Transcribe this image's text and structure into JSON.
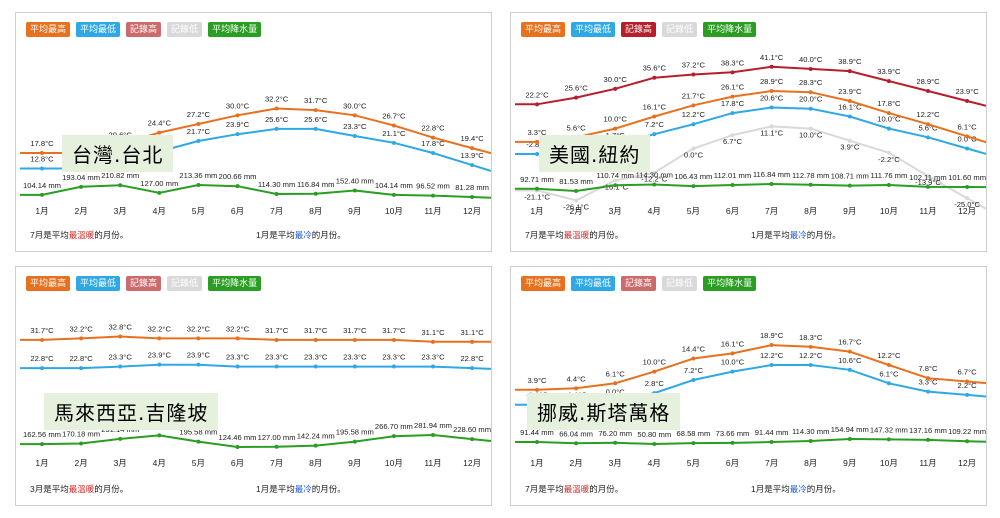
{
  "legend": {
    "high": "平均最高",
    "low": "平均最低",
    "rec_high": "記錄高",
    "rec_low": "記錄低",
    "precip": "平均降水量"
  },
  "months": [
    "1月",
    "2月",
    "3月",
    "4月",
    "5月",
    "6月",
    "7月",
    "8月",
    "9月",
    "10月",
    "11月",
    "12月"
  ],
  "colors": {
    "high": "#e8711f",
    "low": "#2fa8e6",
    "rec_high": "#b51e2a",
    "rec_low": "#d9d9d9",
    "precip": "#2a9e22"
  },
  "panels": [
    {
      "title": "台灣.台北",
      "footer": {
        "hot_month": "7月",
        "hot_pre": "是平均",
        "hot_word": "最溫暖",
        "hot_post": "的月份。",
        "cold_month": "1月",
        "cold_pre": "是平均",
        "cold_word": "最冷",
        "cold_post": "的月份。"
      }
    },
    {
      "title": "美國.紐約",
      "footer": {
        "hot_month": "7月",
        "hot_pre": "是平均",
        "hot_word": "最溫暖",
        "hot_post": "的月份。",
        "cold_month": "1月",
        "cold_pre": "是平均",
        "cold_word": "最冷",
        "cold_post": "的月份。"
      }
    },
    {
      "title": "馬來西亞.吉隆坡",
      "footer": {
        "hot_month": "3月",
        "hot_pre": "是平均",
        "hot_word": "最溫暖",
        "hot_post": "的月份。",
        "cold_month": "1月",
        "cold_pre": "是平均",
        "cold_word": "最冷",
        "cold_post": "的月份。"
      }
    },
    {
      "title": "挪威.斯塔萬格",
      "footer": {
        "hot_month": "7月",
        "hot_pre": "是平均",
        "hot_word": "最溫暖",
        "hot_post": "的月份。",
        "cold_month": "1月",
        "cold_pre": "是平均",
        "cold_word": "最冷",
        "cold_post": "的月份。"
      }
    }
  ],
  "chart_data": [
    {
      "type": "line",
      "title": "台灣.台北",
      "categories": [
        "1月",
        "2月",
        "3月",
        "4月",
        "5月",
        "6月",
        "7月",
        "8月",
        "9月",
        "10月",
        "11月",
        "12月"
      ],
      "temp_unit": "°C",
      "precip_unit": "mm",
      "series": [
        {
          "name": "平均最高",
          "key": "high",
          "values": [
            17.8,
            17.8,
            20.6,
            24.4,
            27.2,
            30.0,
            32.2,
            31.7,
            30.0,
            26.7,
            22.8,
            19.4
          ]
        },
        {
          "name": "平均最低",
          "key": "low",
          "values": [
            12.8,
            12.8,
            14.4,
            18.3,
            21.7,
            23.9,
            25.6,
            25.6,
            23.3,
            21.1,
            17.8,
            13.9
          ]
        },
        {
          "name": "平均降水量",
          "key": "precip",
          "values": [
            104.14,
            193.04,
            210.82,
            127.0,
            213.36,
            200.66,
            114.3,
            116.84,
            152.4,
            104.14,
            96.52,
            81.28
          ]
        }
      ]
    },
    {
      "type": "line",
      "title": "美國.紐約",
      "categories": [
        "1月",
        "2月",
        "3月",
        "4月",
        "5月",
        "6月",
        "7月",
        "8月",
        "9月",
        "10月",
        "11月",
        "12月"
      ],
      "temp_unit": "°C",
      "precip_unit": "mm",
      "series": [
        {
          "name": "平均最高",
          "key": "high",
          "values": [
            3.3,
            5.6,
            10.0,
            16.1,
            21.7,
            26.1,
            28.9,
            28.3,
            23.9,
            17.8,
            12.2,
            6.1
          ]
        },
        {
          "name": "平均最低",
          "key": "low",
          "values": [
            -2.8,
            -1.7,
            1.7,
            7.2,
            12.2,
            17.8,
            20.6,
            20.0,
            16.1,
            10.0,
            5.6,
            0.0
          ]
        },
        {
          "name": "記錄高",
          "key": "rec_high",
          "values": [
            22.2,
            25.6,
            30.0,
            35.6,
            37.2,
            38.3,
            41.1,
            40.0,
            38.9,
            33.9,
            28.9,
            23.9
          ]
        },
        {
          "name": "記錄低",
          "key": "rec_low",
          "values": [
            -21.1,
            -26.1,
            -16.1,
            -12.2,
            0.0,
            6.7,
            11.1,
            10.0,
            3.9,
            -2.2,
            -13.9,
            -25.0
          ]
        },
        {
          "name": "平均降水量",
          "key": "precip",
          "values": [
            92.71,
            81.53,
            110.74,
            114.3,
            106.43,
            112.01,
            116.84,
            112.78,
            108.71,
            111.76,
            102.11,
            101.6
          ]
        }
      ]
    },
    {
      "type": "line",
      "title": "馬來西亞.吉隆坡",
      "categories": [
        "1月",
        "2月",
        "3月",
        "4月",
        "5月",
        "6月",
        "7月",
        "8月",
        "9月",
        "10月",
        "11月",
        "12月"
      ],
      "temp_unit": "°C",
      "precip_unit": "mm",
      "series": [
        {
          "name": "平均最高",
          "key": "high",
          "values": [
            31.7,
            32.2,
            32.8,
            32.2,
            32.2,
            32.2,
            31.7,
            31.7,
            31.7,
            31.7,
            31.1,
            31.1
          ]
        },
        {
          "name": "平均最低",
          "key": "low",
          "values": [
            22.8,
            22.8,
            23.3,
            23.9,
            23.9,
            23.3,
            23.3,
            23.3,
            23.3,
            23.3,
            23.3,
            22.8
          ]
        },
        {
          "name": "平均降水量",
          "key": "precip",
          "values": [
            162.56,
            170.18,
            231.14,
            276.86,
            195.58,
            124.46,
            127.0,
            142.24,
            195.58,
            266.7,
            281.94,
            228.6
          ]
        }
      ]
    },
    {
      "type": "line",
      "title": "挪威.斯塔萬格",
      "categories": [
        "1月",
        "2月",
        "3月",
        "4月",
        "5月",
        "6月",
        "7月",
        "8月",
        "9月",
        "10月",
        "11月",
        "12月"
      ],
      "temp_unit": "°C",
      "precip_unit": "mm",
      "series": [
        {
          "name": "平均最高",
          "key": "high",
          "values": [
            3.9,
            4.4,
            6.1,
            10.0,
            14.4,
            16.1,
            18.9,
            18.3,
            16.7,
            12.2,
            7.8,
            6.7
          ]
        },
        {
          "name": "平均最低",
          "key": "low",
          "values": [
            -1.1,
            -1.1,
            0.0,
            2.8,
            7.2,
            10.0,
            12.2,
            12.2,
            10.6,
            6.1,
            3.3,
            2.2
          ]
        },
        {
          "name": "平均降水量",
          "key": "precip",
          "values": [
            91.44,
            66.04,
            76.2,
            50.8,
            68.58,
            73.66,
            91.44,
            114.3,
            154.94,
            147.32,
            137.16,
            109.22
          ]
        }
      ]
    }
  ]
}
